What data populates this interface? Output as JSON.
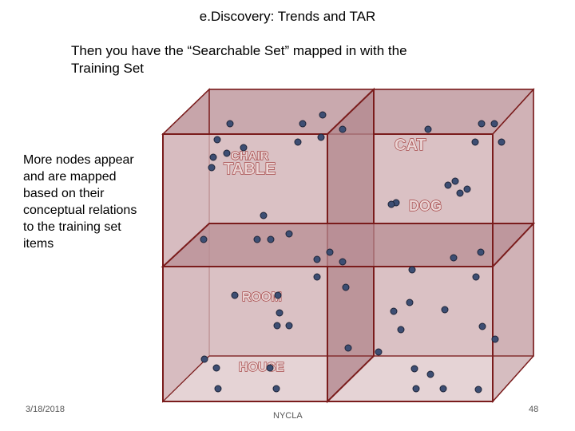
{
  "slide": {
    "title": "e.Discovery: Trends and TAR",
    "subtitle_line1": "Then you have the “Searchable Set” mapped in with the",
    "subtitle_line2": "Training Set",
    "side_note": "More nodes appear and are mapped based on their conceptual relations to the training set items"
  },
  "footer": {
    "date": "3/18/2018",
    "org": "NYCLA",
    "page": "48"
  },
  "concepts": {
    "chair": "CHAIR",
    "table": "TABLE",
    "cat": "CAT",
    "dog": "DOG",
    "room": "ROOM",
    "house": "HOUSE"
  },
  "colors": {
    "cube_fill": "#d9bfc3",
    "cube_edge": "#7a1c1c",
    "node_fill": "#3d4e73",
    "node_stroke": "#1d2438",
    "concept_text": "#9b2d2d"
  }
}
